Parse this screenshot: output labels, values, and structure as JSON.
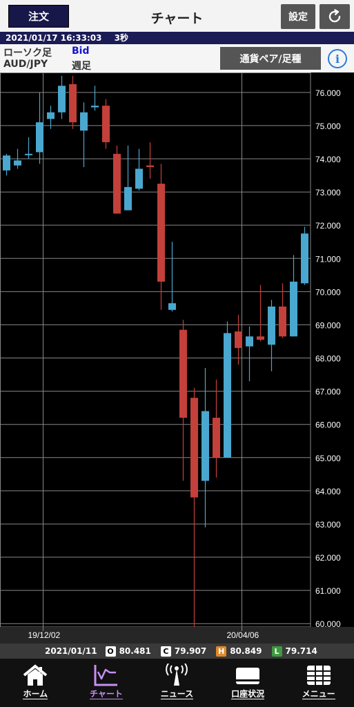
{
  "header": {
    "order_label": "注文",
    "title": "チャート",
    "settings_label": "設定"
  },
  "info": {
    "timestamp": "2021/01/17 16:33:03",
    "interval": "3秒"
  },
  "subbar": {
    "chart_type": "ローソク足",
    "price_type": "Bid",
    "pair": "AUD/JPY",
    "period": "週足",
    "pair_button_label": "通貨ペア/足種",
    "info_label": "i"
  },
  "ohlc": {
    "date": "2021/01/11",
    "open_label": "O",
    "open": "80.481",
    "close_label": "C",
    "close": "79.907",
    "high_label": "H",
    "high": "80.849",
    "low_label": "L",
    "low": "79.714"
  },
  "tabs": [
    {
      "label": "ホーム",
      "icon": "home-icon"
    },
    {
      "label": "チャート",
      "icon": "chart-icon"
    },
    {
      "label": "ニュース",
      "icon": "news-icon"
    },
    {
      "label": "口座状況",
      "icon": "account-icon"
    },
    {
      "label": "メニュー",
      "icon": "menu-icon"
    }
  ],
  "colors": {
    "up": "#4aa7cf",
    "down": "#c4403a",
    "grid": "#888888",
    "order_button": "#17174a",
    "active_tab": "#c98ff4",
    "badge_o": "#ffffff",
    "badge_c": "#ffffff",
    "badge_h": "#e08a2c",
    "badge_l": "#3f9a3f"
  },
  "chart_data": {
    "type": "candlestick",
    "ylim": [
      59.9,
      76.6
    ],
    "y_ticks": [
      "76.000",
      "75.000",
      "74.000",
      "73.000",
      "72.000",
      "71.000",
      "70.000",
      "69.000",
      "68.000",
      "67.000",
      "66.000",
      "65.000",
      "64.000",
      "63.000",
      "62.000",
      "61.000",
      "60.000"
    ],
    "x_labels": [
      {
        "label": "19/12/02",
        "index": 2
      },
      {
        "label": "20/04/06",
        "index": 20
      }
    ],
    "candles": [
      {
        "o": 73.65,
        "h": 74.15,
        "l": 73.5,
        "c": 74.1
      },
      {
        "o": 73.8,
        "h": 74.3,
        "l": 73.7,
        "c": 73.95
      },
      {
        "o": 74.15,
        "h": 74.65,
        "l": 74.0,
        "c": 74.15
      },
      {
        "o": 74.2,
        "h": 76.0,
        "l": 73.85,
        "c": 75.1
      },
      {
        "o": 75.2,
        "h": 75.6,
        "l": 74.9,
        "c": 75.4
      },
      {
        "o": 75.4,
        "h": 76.5,
        "l": 75.2,
        "c": 76.2
      },
      {
        "o": 76.25,
        "h": 76.5,
        "l": 74.9,
        "c": 75.1
      },
      {
        "o": 74.85,
        "h": 75.7,
        "l": 73.75,
        "c": 75.4
      },
      {
        "o": 75.55,
        "h": 76.2,
        "l": 75.45,
        "c": 75.6
      },
      {
        "o": 75.6,
        "h": 75.8,
        "l": 74.3,
        "c": 74.5
      },
      {
        "o": 74.15,
        "h": 74.4,
        "l": 72.35,
        "c": 72.35
      },
      {
        "o": 72.45,
        "h": 74.4,
        "l": 72.45,
        "c": 73.15
      },
      {
        "o": 73.1,
        "h": 74.3,
        "l": 73.05,
        "c": 73.7
      },
      {
        "o": 73.8,
        "h": 74.5,
        "l": 73.4,
        "c": 73.75
      },
      {
        "o": 73.25,
        "h": 73.85,
        "l": 69.45,
        "c": 70.3
      },
      {
        "o": 69.45,
        "h": 71.5,
        "l": 69.4,
        "c": 69.65
      },
      {
        "o": 68.85,
        "h": 69.15,
        "l": 64.3,
        "c": 66.2
      },
      {
        "o": 66.8,
        "h": 67.1,
        "l": 59.9,
        "c": 63.8
      },
      {
        "o": 64.3,
        "h": 67.7,
        "l": 62.9,
        "c": 66.4
      },
      {
        "o": 66.2,
        "h": 67.35,
        "l": 64.4,
        "c": 65.0
      },
      {
        "o": 65.0,
        "h": 69.1,
        "l": 65.0,
        "c": 68.75
      },
      {
        "o": 68.8,
        "h": 69.3,
        "l": 67.8,
        "c": 68.3
      },
      {
        "o": 68.35,
        "h": 68.95,
        "l": 67.3,
        "c": 68.65
      },
      {
        "o": 68.65,
        "h": 70.2,
        "l": 68.5,
        "c": 68.55
      },
      {
        "o": 68.4,
        "h": 69.75,
        "l": 67.6,
        "c": 69.55
      },
      {
        "o": 69.55,
        "h": 70.25,
        "l": 68.6,
        "c": 68.65
      },
      {
        "o": 68.65,
        "h": 71.1,
        "l": 68.65,
        "c": 70.3
      },
      {
        "o": 70.25,
        "h": 71.95,
        "l": 70.2,
        "c": 71.75
      }
    ]
  }
}
